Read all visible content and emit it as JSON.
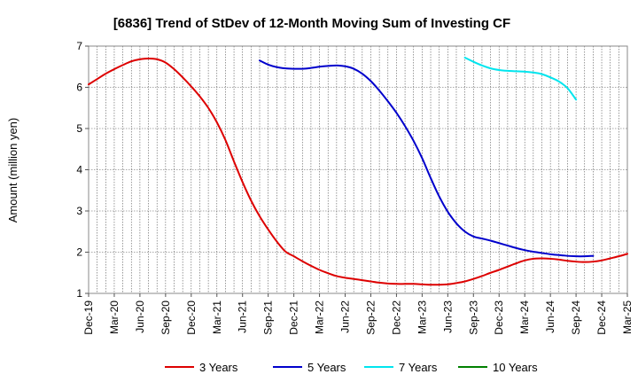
{
  "chart_data": {
    "type": "line",
    "title": "[6836]  Trend of StDev of 12-Month Moving Sum of Investing CF",
    "ylabel": "Amount (million yen)",
    "xlabel": "",
    "ylim": [
      1,
      7
    ],
    "yticks": [
      "1",
      "2",
      "3",
      "4",
      "5",
      "6",
      "7"
    ],
    "x_ticks": [
      "Dec-19",
      "Mar-20",
      "Jun-20",
      "Sep-20",
      "Dec-20",
      "Mar-21",
      "Jun-21",
      "Sep-21",
      "Dec-21",
      "Mar-22",
      "Jun-22",
      "Sep-22",
      "Dec-22",
      "Mar-23",
      "Jun-23",
      "Sep-23",
      "Dec-23",
      "Mar-24",
      "Jun-24",
      "Sep-24",
      "Dec-24",
      "Mar-25"
    ],
    "x_tick_last": "Mar-25",
    "x_start": "2019-12",
    "grid": true,
    "legend_position": "bottom",
    "series": [
      {
        "name": "3 Years",
        "color": "#dd0000",
        "start": "2019-12",
        "values": [
          6.07,
          6.2,
          6.33,
          6.44,
          6.54,
          6.63,
          6.68,
          6.7,
          6.68,
          6.6,
          6.44,
          6.24,
          6.02,
          5.78,
          5.5,
          5.15,
          4.72,
          4.2,
          3.7,
          3.25,
          2.87,
          2.55,
          2.26,
          2.02,
          1.9,
          1.78,
          1.67,
          1.57,
          1.49,
          1.42,
          1.38,
          1.35,
          1.32,
          1.29,
          1.26,
          1.24,
          1.23,
          1.23,
          1.23,
          1.22,
          1.21,
          1.21,
          1.22,
          1.25,
          1.29,
          1.35,
          1.42,
          1.5,
          1.57,
          1.65,
          1.73,
          1.8,
          1.84,
          1.85,
          1.84,
          1.82,
          1.79,
          1.77,
          1.76,
          1.77,
          1.8,
          1.85,
          1.9,
          1.96
        ]
      },
      {
        "name": "5 Years",
        "color": "#0000cc",
        "start": "2021-08",
        "values": [
          6.65,
          6.55,
          6.49,
          6.46,
          6.45,
          6.45,
          6.47,
          6.5,
          6.52,
          6.53,
          6.51,
          6.45,
          6.33,
          6.15,
          5.92,
          5.66,
          5.38,
          5.06,
          4.7,
          4.28,
          3.8,
          3.35,
          2.98,
          2.7,
          2.5,
          2.38,
          2.33,
          2.28,
          2.22,
          2.16,
          2.1,
          2.05,
          2.01,
          1.98,
          1.95,
          1.93,
          1.91,
          1.9,
          1.9,
          1.91
        ]
      },
      {
        "name": "7 Years",
        "color": "#00e5ee",
        "start": "2023-08",
        "values": [
          6.72,
          6.62,
          6.53,
          6.46,
          6.42,
          6.4,
          6.39,
          6.38,
          6.36,
          6.32,
          6.24,
          6.14,
          5.98,
          5.7
        ]
      },
      {
        "name": "10 Years",
        "color": "#008000",
        "start": "",
        "values": []
      }
    ]
  }
}
